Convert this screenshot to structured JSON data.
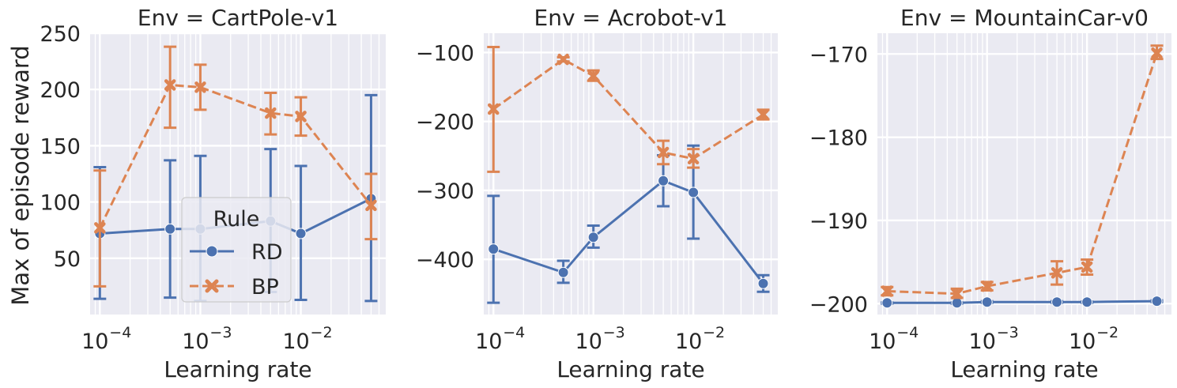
{
  "figure": {
    "ylabel": "Max of episode reward",
    "xlabel": "Learning rate",
    "legend": {
      "title": "Rule",
      "entries": [
        "RD",
        "BP"
      ],
      "placement": "lower-center of first panel"
    }
  },
  "colors": {
    "RD": "#4c72b0",
    "BP": "#dd8452",
    "panel_bg": "#eaeaf2",
    "grid": "#ffffff"
  },
  "chart_data": [
    {
      "type": "line",
      "title": "Env = CartPole-v1",
      "xlabel": "Learning rate",
      "ylabel": "Max of episode reward",
      "xscale": "log",
      "xlim": [
        8e-05,
        0.07
      ],
      "ylim": [
        0,
        250
      ],
      "yticks": [
        50,
        100,
        150,
        200,
        250
      ],
      "ytick_labels": [
        "50",
        "100",
        "150",
        "200",
        "250"
      ],
      "xticks": [
        0.0001,
        0.001,
        0.01
      ],
      "xtick_labels": [
        "10",
        "10",
        "10"
      ],
      "xtick_exponents": [
        "−4",
        "−3",
        "−2"
      ],
      "grid": true,
      "legend": true,
      "series": [
        {
          "name": "RD",
          "marker": "circle",
          "dash": "solid",
          "x": [
            0.0001,
            0.0005,
            0.001,
            0.005,
            0.01,
            0.05
          ],
          "y": [
            72,
            76,
            76,
            83,
            72,
            103
          ],
          "err_low": [
            14,
            15,
            12,
            20,
            13,
            12
          ],
          "err_high": [
            131,
            137,
            141,
            147,
            132,
            195
          ]
        },
        {
          "name": "BP",
          "marker": "x",
          "dash": "dashed",
          "x": [
            0.0001,
            0.0005,
            0.001,
            0.005,
            0.01,
            0.05
          ],
          "y": [
            77,
            204,
            202,
            179,
            176,
            97
          ],
          "err_low": [
            25,
            166,
            182,
            160,
            159,
            67
          ],
          "err_high": [
            128,
            238,
            222,
            197,
            193,
            125
          ]
        }
      ]
    },
    {
      "type": "line",
      "title": "Env = Acrobot-v1",
      "xlabel": "Learning rate",
      "xscale": "log",
      "xlim": [
        8e-05,
        0.07
      ],
      "ylim": [
        -480,
        -72
      ],
      "yticks": [
        -400,
        -300,
        -200,
        -100
      ],
      "ytick_labels": [
        "−400",
        "−300",
        "−200",
        "−100"
      ],
      "xticks": [
        0.0001,
        0.001,
        0.01
      ],
      "xtick_labels": [
        "10",
        "10",
        "10"
      ],
      "xtick_exponents": [
        "−4",
        "−3",
        "−2"
      ],
      "grid": true,
      "legend": false,
      "series": [
        {
          "name": "RD",
          "marker": "circle",
          "dash": "solid",
          "x": [
            0.0001,
            0.0005,
            0.001,
            0.005,
            0.01,
            0.05
          ],
          "y": [
            -385,
            -419,
            -368,
            -286,
            -303,
            -435
          ],
          "err_low": [
            -463,
            -434,
            -383,
            -323,
            -370,
            -447
          ],
          "err_high": [
            -308,
            -402,
            -351,
            -249,
            -235,
            -423
          ]
        },
        {
          "name": "BP",
          "marker": "x",
          "dash": "dashed",
          "x": [
            0.0001,
            0.0005,
            0.001,
            0.005,
            0.01,
            0.05
          ],
          "y": [
            -182,
            -110,
            -134,
            -245,
            -254,
            -190
          ],
          "err_low": [
            -273,
            -113,
            -141,
            -262,
            -267,
            -197
          ],
          "err_high": [
            -92,
            -107,
            -126,
            -228,
            -240,
            -183
          ]
        }
      ]
    },
    {
      "type": "line",
      "title": "Env = MountainCar-v0",
      "xlabel": "Learning rate",
      "xscale": "log",
      "xlim": [
        8e-05,
        0.07
      ],
      "ylim": [
        -201.3,
        -167.5
      ],
      "yticks": [
        -200,
        -190,
        -180,
        -170
      ],
      "ytick_labels": [
        "−200",
        "−190",
        "−180",
        "−170"
      ],
      "xticks": [
        0.0001,
        0.001,
        0.01
      ],
      "xtick_labels": [
        "10",
        "10",
        "10"
      ],
      "xtick_exponents": [
        "−4",
        "−3",
        "−2"
      ],
      "grid": true,
      "legend": false,
      "series": [
        {
          "name": "RD",
          "marker": "circle",
          "dash": "solid",
          "x": [
            0.0001,
            0.0005,
            0.001,
            0.005,
            0.01,
            0.05
          ],
          "y": [
            -199.9,
            -199.9,
            -199.8,
            -199.8,
            -199.8,
            -199.7
          ],
          "err_low": [
            -200,
            -200,
            -199.9,
            -199.9,
            -199.9,
            -199.8
          ],
          "err_high": [
            -199.85,
            -199.85,
            -199.7,
            -199.7,
            -199.75,
            -199.6
          ]
        },
        {
          "name": "BP",
          "marker": "x",
          "dash": "dashed",
          "x": [
            0.0001,
            0.0005,
            0.001,
            0.005,
            0.01,
            0.05
          ],
          "y": [
            -198.5,
            -198.8,
            -197.9,
            -196.3,
            -195.6,
            -169.9
          ],
          "err_low": [
            -199,
            -199.3,
            -198.4,
            -197.7,
            -196.5,
            -170.6
          ],
          "err_high": [
            -198,
            -198.2,
            -197.4,
            -194.9,
            -194.7,
            -169
          ]
        }
      ]
    }
  ]
}
